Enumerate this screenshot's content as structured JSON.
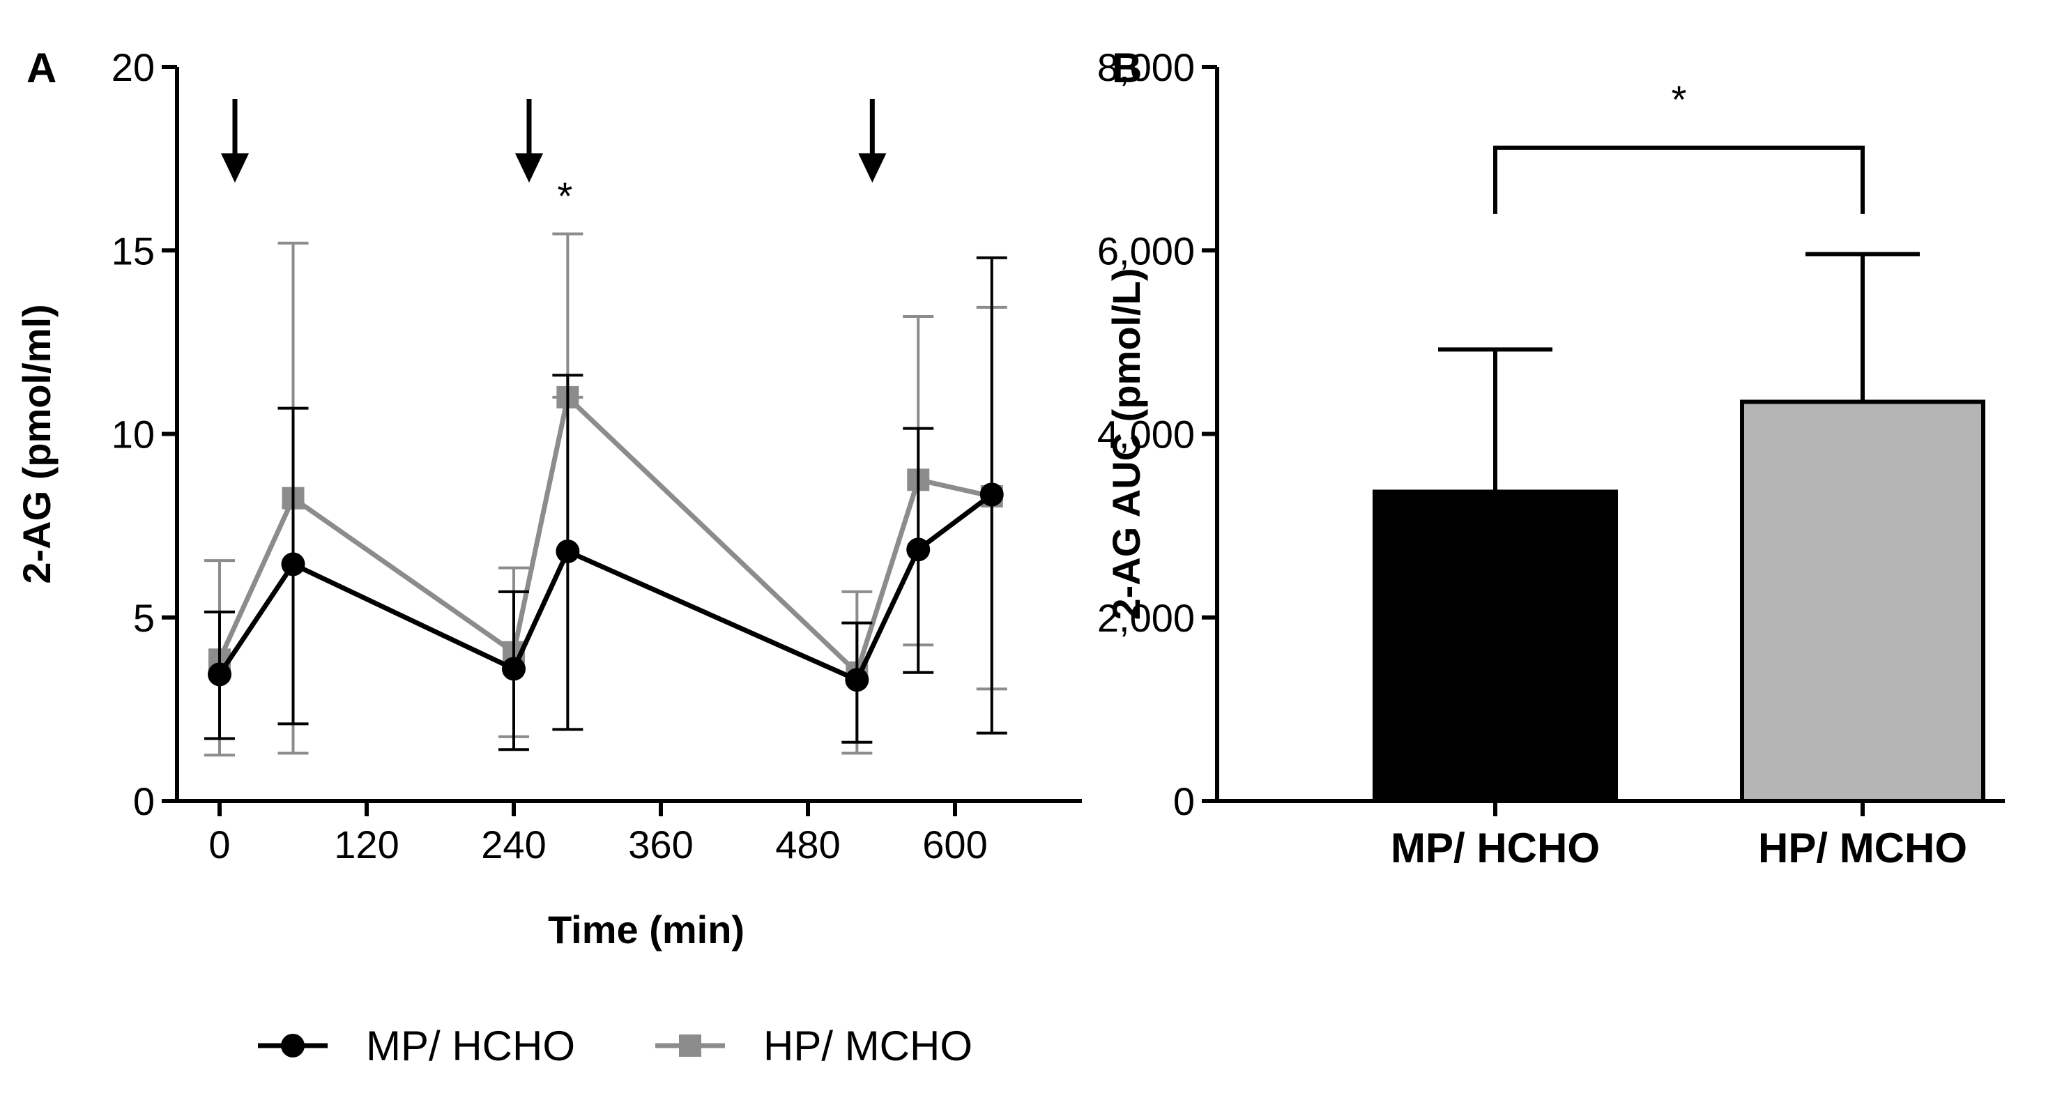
{
  "chart_data": [
    {
      "panel": "A",
      "type": "line",
      "xlabel": "Time (min)",
      "ylabel": "2-AG (pmol/ml)",
      "xlim": [
        -15,
        690
      ],
      "ylim": [
        0,
        20
      ],
      "xticks": [
        0,
        120,
        240,
        360,
        480,
        600
      ],
      "yticks": [
        0,
        5,
        10,
        15,
        20
      ],
      "arrows_at": [
        0,
        240,
        520
      ],
      "significance": [
        {
          "x": 284,
          "y": 16.5,
          "text": "*"
        }
      ],
      "series": [
        {
          "name": "MP/ HCHO",
          "color": "#000000",
          "marker": "circle",
          "x": [
            0,
            60,
            240,
            284,
            520,
            570,
            630
          ],
          "y": [
            3.45,
            6.45,
            3.6,
            6.8,
            3.3,
            6.85,
            8.35
          ],
          "err_low": [
            1.7,
            2.1,
            1.4,
            1.95,
            1.6,
            3.5,
            1.85
          ],
          "err_high": [
            5.15,
            10.7,
            5.7,
            11.6,
            4.85,
            10.15,
            14.8
          ]
        },
        {
          "name": "HP/ MCHO",
          "color": "#8c8c8c",
          "marker": "square",
          "x": [
            0,
            60,
            240,
            284,
            520,
            570,
            630
          ],
          "y": [
            3.85,
            8.25,
            4.05,
            11.0,
            3.5,
            8.75,
            8.3
          ],
          "err_low": [
            1.25,
            1.3,
            1.75,
            11.0,
            1.3,
            4.25,
            3.05
          ],
          "err_high": [
            6.55,
            15.2,
            6.35,
            15.45,
            5.7,
            13.2,
            13.45
          ]
        }
      ]
    },
    {
      "panel": "B",
      "type": "bar",
      "ylabel": "2-AG AUC (pmol/L)",
      "ylim": [
        0,
        8000
      ],
      "yticks": [
        0,
        2000,
        4000,
        6000,
        8000
      ],
      "ytick_labels": [
        "0",
        "2,000",
        "4,000",
        "6,000",
        "8,000"
      ],
      "categories": [
        "MP/ HCHO",
        "HP/ MCHO"
      ],
      "values": [
        3370,
        4350
      ],
      "err_high": [
        4920,
        5960
      ],
      "colors": [
        "#000000",
        "#b4b4b4"
      ],
      "significance": {
        "text": "*",
        "bracket_y": 7120
      }
    }
  ],
  "legend": {
    "items": [
      {
        "label": "MP/ HCHO",
        "color": "#000000",
        "marker": "circle"
      },
      {
        "label": "HP/ MCHO",
        "color": "#8c8c8c",
        "marker": "square"
      }
    ]
  }
}
